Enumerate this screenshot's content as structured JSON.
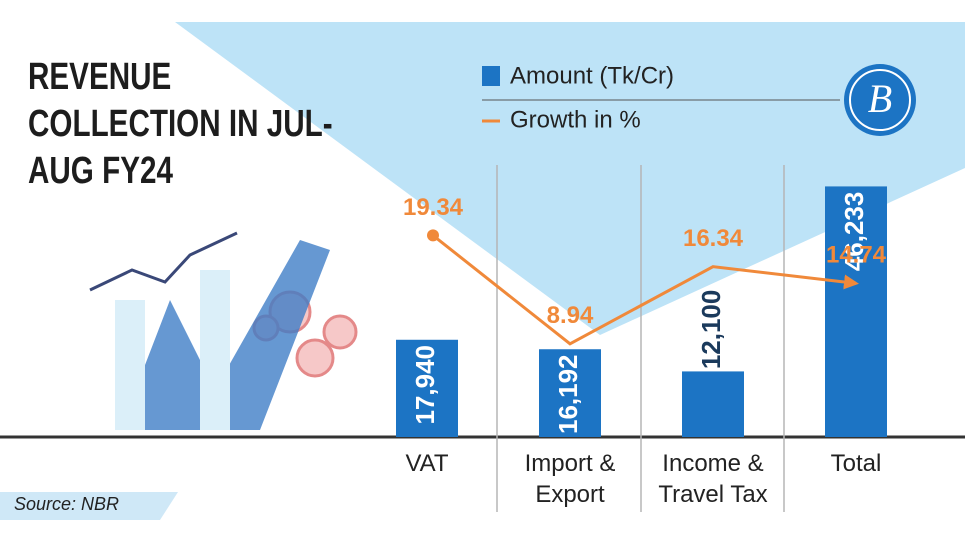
{
  "chart_data": {
    "type": "bar",
    "title": "REVENUE COLLECTION IN JUL-AUG FY24",
    "categories": [
      "VAT",
      "Import & Export",
      "Income & Travel Tax",
      "Total"
    ],
    "series": [
      {
        "name": "Amount (Tk/Cr)",
        "type": "bar",
        "color": "#1c74c4",
        "values": [
          17940,
          16192,
          12100,
          46233
        ],
        "value_labels": [
          "17,940",
          "16,192",
          "12,100",
          "46,233"
        ]
      },
      {
        "name": "Growth in %",
        "type": "line",
        "axis": "y2",
        "color": "#f0893a",
        "values": [
          19.34,
          8.94,
          16.34,
          14.74
        ]
      }
    ],
    "ylim": [
      0,
      50000
    ],
    "y2lim": [
      0,
      26
    ],
    "source": "Source: NBR",
    "logo": "B"
  }
}
